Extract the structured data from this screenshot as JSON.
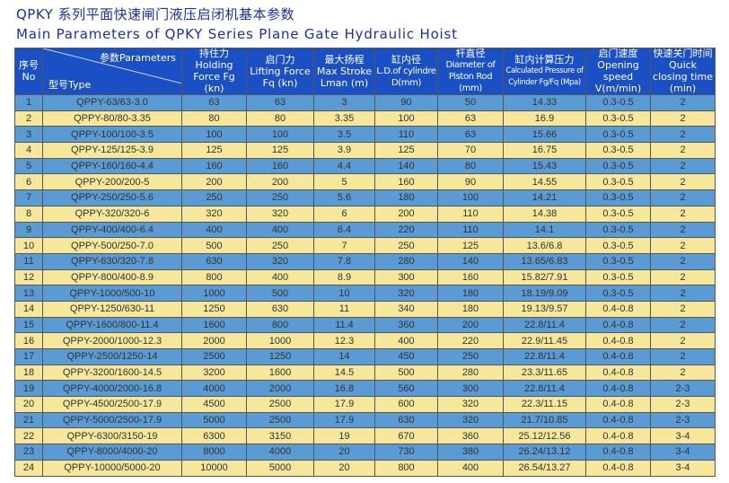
{
  "title_cn": "QPKY 系列平面快速闸门液压启闭机基本参数",
  "title_en": "Main Parameters of QPKY Series  Plane Gate Hydraulic Hoist",
  "colors": {
    "title": "#1a2fae",
    "header_bg": "#1b4fc4",
    "row_odd": "#5b9bd5",
    "row_even": "#f6e79b"
  },
  "headers": {
    "no": {
      "cn": "序号",
      "en": "No"
    },
    "param": {
      "top": "参数Parameters",
      "bottom": "型号Type"
    },
    "cols": [
      {
        "cn": "持住力",
        "en": "Holding Force Fg (kn)"
      },
      {
        "cn": "启门力",
        "en": "Lifting Force Fq (kn)"
      },
      {
        "cn": "最大扬程",
        "en": "Max Stroke Lman (m)"
      },
      {
        "cn": "缸内径",
        "en": "L.D.of cylindre D(mm)"
      },
      {
        "cn": "杆直径",
        "en": "Diameter of Piston Rod (mm)"
      },
      {
        "cn": "缸内计算压力",
        "en": "Calculated Pressure of Cylinder Fg/Fq (Mpa)"
      },
      {
        "cn": "启门速度",
        "en": "Opening speed V(m/min)"
      },
      {
        "cn": "快速关门时间",
        "en": "Quick closing time (min)"
      }
    ]
  },
  "rows": [
    [
      "1",
      "QPPY-63/63-3.0",
      "63",
      "63",
      "3",
      "90",
      "50",
      "14.33",
      "0.3-0.5",
      "2"
    ],
    [
      "2",
      "QPPY-80/80-3.35",
      "80",
      "80",
      "3.35",
      "100",
      "63",
      "16.9",
      "0.3-0.5",
      "2"
    ],
    [
      "3",
      "QPPY-100/100-3.5",
      "100",
      "100",
      "3.5",
      "110",
      "63",
      "15.66",
      "0.3-0.5",
      "2"
    ],
    [
      "4",
      "QPPY-125/125-3.9",
      "125",
      "125",
      "3.9",
      "125",
      "70",
      "16.75",
      "0.3-0.5",
      "2"
    ],
    [
      "5",
      "QPPY-160/160-4.4",
      "160",
      "160",
      "4.4",
      "140",
      "80",
      "15.43",
      "0.3-0.5",
      "2"
    ],
    [
      "6",
      "QPPY-200/200-5",
      "200",
      "200",
      "5",
      "160",
      "90",
      "14.55",
      "0.3-0.5",
      "2"
    ],
    [
      "7",
      "QPPY-250/250-5.6",
      "250",
      "250",
      "5.6",
      "180",
      "100",
      "14.21",
      "0.3-0.5",
      "2"
    ],
    [
      "8",
      "QPPY-320/320-6",
      "320",
      "320",
      "6",
      "200",
      "110",
      "14.38",
      "0.3-0.5",
      "2"
    ],
    [
      "9",
      "QPPY-400/400-6.4",
      "400",
      "400",
      "6.4",
      "220",
      "110",
      "14.1",
      "0.3-0.5",
      "2"
    ],
    [
      "10",
      "QPPY-500/250-7.0",
      "500",
      "250",
      "7",
      "250",
      "125",
      "13.6/6.8",
      "0.3-0.5",
      "2"
    ],
    [
      "11",
      "QPPY-630/320-7.8",
      "630",
      "320",
      "7.8",
      "280",
      "140",
      "13.65/6.83",
      "0.3-0.5",
      "2"
    ],
    [
      "12",
      "QPPY-800/400-8.9",
      "800",
      "400",
      "8.9",
      "300",
      "160",
      "15.82/7.91",
      "0.3-0.5",
      "2"
    ],
    [
      "13",
      "QPPY-1000/500-10",
      "1000",
      "500",
      "10",
      "320",
      "180",
      "18.19/9.09",
      "0.3-0.5",
      "2"
    ],
    [
      "14",
      "QPPY-1250/630-11",
      "1250",
      "630",
      "11",
      "340",
      "180",
      "19.13/9.57",
      "0.4-0.8",
      "2"
    ],
    [
      "15",
      "QPPY-1600/800-11.4",
      "1600",
      "800",
      "11.4",
      "360",
      "200",
      "22.8/11.4",
      "0.4-0.8",
      "2"
    ],
    [
      "16",
      "QPPY-2000/1000-12.3",
      "2000",
      "1000",
      "12.3",
      "400",
      "220",
      "22.9/11.45",
      "0.4-0.8",
      "2"
    ],
    [
      "17",
      "QPPY-2500/1250-14",
      "2500",
      "1250",
      "14",
      "450",
      "250",
      "22.8/11.4",
      "0.4-0.8",
      "2"
    ],
    [
      "18",
      "QPPY-3200/1600-14.5",
      "3200",
      "1600",
      "14.5",
      "500",
      "280",
      "23.3/11.65",
      "0.4-0.8",
      "2"
    ],
    [
      "19",
      "QPPY-4000/2000-16.8",
      "4000",
      "2000",
      "16.8",
      "560",
      "300",
      "22.8/11.4",
      "0.4-0.8",
      "2-3"
    ],
    [
      "20",
      "QPPY-4500/2500-17.9",
      "4500",
      "2500",
      "17.9",
      "600",
      "320",
      "22.3/11.15",
      "0.4-0.8",
      "2-3"
    ],
    [
      "21",
      "QPPY-5000/2500-17.9",
      "5000",
      "2500",
      "17.9",
      "630",
      "320",
      "21.7/10.85",
      "0.4-0.8",
      "2-3"
    ],
    [
      "22",
      "QPPY-6300/3150-19",
      "6300",
      "3150",
      "19",
      "670",
      "360",
      "25.12/12.56",
      "0.4-0.8",
      "3-4"
    ],
    [
      "23",
      "QPPY-8000/4000-20",
      "8000",
      "4000",
      "20",
      "730",
      "380",
      "26.24/13.12",
      "0.4-0.8",
      "3-4"
    ],
    [
      "24",
      "QPPY-10000/5000-20",
      "10000",
      "5000",
      "20",
      "800",
      "400",
      "26.54/13.27",
      "0.4-0.8",
      "3-4"
    ]
  ]
}
